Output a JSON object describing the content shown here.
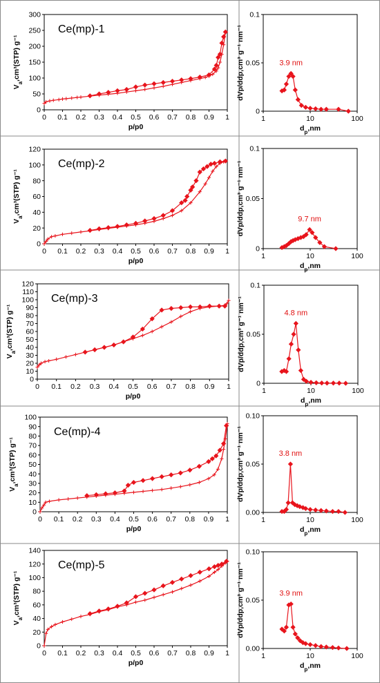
{
  "colors": {
    "series": "#e8141c",
    "frame": "#000000",
    "cellBorder": "#8a8a8a"
  },
  "chart_data": [
    {
      "type": "line",
      "panel": "isotherm",
      "sample_label": "Ce(mp)-1",
      "xlabel": "p/p0",
      "ylabel_main": "V",
      "ylabel_sub": "a",
      "ylabel_rest": ",cm³(STP) g⁻¹",
      "xlim": [
        0,
        1
      ],
      "ylim": [
        0,
        300
      ],
      "xticks": [
        0,
        0.1,
        0.2,
        0.3,
        0.4,
        0.5,
        0.6,
        0.7,
        0.8,
        0.9,
        1
      ],
      "yticks": [
        0,
        50,
        100,
        150,
        200,
        250,
        300
      ],
      "series": [
        {
          "marker": "plus",
          "x": [
            0,
            0.01,
            0.03,
            0.05,
            0.08,
            0.1,
            0.12,
            0.15,
            0.18,
            0.2,
            0.25,
            0.3,
            0.35,
            0.4,
            0.45,
            0.5,
            0.55,
            0.6,
            0.65,
            0.7,
            0.75,
            0.8,
            0.85,
            0.88,
            0.9,
            0.92,
            0.94,
            0.95,
            0.96,
            0.97,
            0.98,
            0.99
          ],
          "y": [
            20,
            25,
            28,
            30,
            32,
            34,
            35,
            37,
            39,
            40,
            43,
            46,
            49,
            52,
            56,
            60,
            64,
            69,
            74,
            80,
            86,
            92,
            98,
            102,
            106,
            112,
            122,
            132,
            150,
            175,
            205,
            245
          ]
        },
        {
          "marker": "diamond",
          "x": [
            0.99,
            0.98,
            0.97,
            0.96,
            0.95,
            0.94,
            0.93,
            0.9,
            0.85,
            0.8,
            0.75,
            0.7,
            0.65,
            0.6,
            0.55,
            0.5,
            0.45,
            0.4,
            0.35,
            0.3,
            0.25
          ],
          "y": [
            245,
            230,
            210,
            175,
            165,
            140,
            128,
            110,
            103,
            98,
            94,
            90,
            86,
            82,
            78,
            72,
            64,
            60,
            55,
            50,
            44
          ]
        }
      ]
    },
    {
      "type": "line",
      "panel": "pore_size_distribution",
      "xscale": "log",
      "xlabel_main": "d",
      "xlabel_sub": "p",
      "xlabel_rest": ",nm",
      "ylabel": "dVp/ddp,cm³ g⁻¹ nm⁻¹",
      "xlim": [
        1,
        100
      ],
      "ylim": [
        0,
        0.1
      ],
      "xticks": [
        1,
        10,
        100
      ],
      "yticks": [
        0,
        0.05,
        0.1
      ],
      "ytick_labels": [
        "0",
        "0.05",
        "0.1"
      ],
      "peak_label": "3.9 nm",
      "series": [
        {
          "marker": "diamond",
          "x": [
            2.5,
            2.8,
            3.1,
            3.5,
            3.9,
            4.3,
            4.8,
            5.5,
            6.5,
            8,
            10,
            13,
            17,
            22,
            40,
            65
          ],
          "y": [
            0.021,
            0.022,
            0.028,
            0.036,
            0.039,
            0.036,
            0.022,
            0.012,
            0.006,
            0.004,
            0.003,
            0.0025,
            0.002,
            0.002,
            0.002,
            0.0
          ]
        }
      ]
    },
    {
      "type": "line",
      "panel": "isotherm",
      "sample_label": "Ce(mp)-2",
      "xlabel": "p/p0",
      "ylabel_main": "V",
      "ylabel_sub": "a",
      "ylabel_rest": ",cm³(STP) g⁻¹",
      "xlim": [
        0,
        1
      ],
      "ylim": [
        0,
        120
      ],
      "xticks": [
        0,
        0.1,
        0.2,
        0.3,
        0.4,
        0.5,
        0.6,
        0.7,
        0.8,
        0.9,
        1
      ],
      "yticks": [
        0,
        20,
        40,
        60,
        80,
        100,
        120
      ],
      "series": [
        {
          "marker": "plus",
          "x": [
            0,
            0.01,
            0.02,
            0.04,
            0.06,
            0.1,
            0.15,
            0.2,
            0.25,
            0.3,
            0.35,
            0.4,
            0.45,
            0.5,
            0.55,
            0.6,
            0.65,
            0.7,
            0.75,
            0.8,
            0.85,
            0.88,
            0.9,
            0.92,
            0.94,
            0.96,
            0.98,
            0.99
          ],
          "y": [
            0,
            3,
            6,
            9,
            10,
            12,
            13.5,
            15,
            16.5,
            18,
            19.5,
            21,
            22.5,
            24,
            26,
            28.5,
            32,
            36,
            42,
            52,
            66,
            76,
            84,
            92,
            98,
            102,
            104,
            105
          ]
        },
        {
          "marker": "diamond",
          "x": [
            0.99,
            0.96,
            0.93,
            0.91,
            0.89,
            0.87,
            0.85,
            0.83,
            0.81,
            0.8,
            0.78,
            0.77,
            0.75,
            0.7,
            0.65,
            0.6,
            0.55,
            0.5,
            0.45,
            0.4,
            0.35,
            0.3,
            0.25
          ],
          "y": [
            105,
            104,
            102,
            101,
            98,
            95,
            91,
            80,
            72,
            68,
            60,
            55,
            52,
            42,
            36,
            32,
            29,
            26,
            24,
            22,
            20.5,
            19,
            17
          ]
        }
      ]
    },
    {
      "type": "line",
      "panel": "pore_size_distribution",
      "xscale": "log",
      "xlabel_main": "d",
      "xlabel_sub": "p",
      "xlabel_rest": ",nm",
      "ylabel": "dVp/ddp,cm³ g⁻¹ nm⁻¹",
      "xlim": [
        1,
        100
      ],
      "ylim": [
        0,
        0.1
      ],
      "xticks": [
        1,
        10,
        100
      ],
      "yticks": [
        0,
        0.05,
        0.1
      ],
      "ytick_labels": [
        "0",
        "0.05",
        "0.1"
      ],
      "peak_label": "9.7 nm",
      "series": [
        {
          "marker": "diamond",
          "x": [
            2.5,
            2.8,
            3.1,
            3.5,
            3.9,
            4.3,
            4.8,
            5.5,
            6.3,
            7.2,
            8.2,
            9.7,
            11,
            13,
            16,
            20,
            35
          ],
          "y": [
            0.001,
            0.002,
            0.003,
            0.005,
            0.007,
            0.008,
            0.009,
            0.01,
            0.011,
            0.012,
            0.014,
            0.019,
            0.016,
            0.011,
            0.006,
            0.002,
            0.0
          ]
        }
      ]
    },
    {
      "type": "line",
      "panel": "isotherm",
      "sample_label": "Ce(mp)-3",
      "xlabel": "p/p0",
      "ylabel_main": "V",
      "ylabel_sub": "a",
      "ylabel_rest": ",cm³(STP) g⁻¹",
      "xlim": [
        0,
        1
      ],
      "ylim": [
        0,
        120
      ],
      "xticks": [
        0,
        0.1,
        0.2,
        0.3,
        0.4,
        0.5,
        0.6,
        0.7,
        0.8,
        0.9,
        1
      ],
      "yticks": [
        0,
        10,
        20,
        30,
        40,
        50,
        60,
        70,
        80,
        90,
        100,
        110,
        120
      ],
      "series": [
        {
          "marker": "plus",
          "x": [
            0,
            0.01,
            0.02,
            0.04,
            0.06,
            0.1,
            0.15,
            0.2,
            0.25,
            0.3,
            0.35,
            0.4,
            0.45,
            0.5,
            0.55,
            0.6,
            0.65,
            0.7,
            0.75,
            0.8,
            0.85,
            0.9,
            0.95,
            0.98,
            0.99,
            1.0
          ],
          "y": [
            15,
            18,
            20,
            22,
            23,
            25,
            28,
            31,
            34,
            37,
            40,
            43,
            47,
            51,
            55,
            60,
            66,
            72,
            79,
            85,
            89,
            91,
            92,
            93,
            95,
            99
          ]
        },
        {
          "marker": "diamond",
          "x": [
            0.98,
            0.95,
            0.9,
            0.85,
            0.8,
            0.75,
            0.7,
            0.65,
            0.6,
            0.55,
            0.5,
            0.45,
            0.4,
            0.35,
            0.3,
            0.25
          ],
          "y": [
            92,
            92,
            92,
            91,
            91,
            90,
            89,
            87,
            76,
            63,
            53,
            47,
            43,
            40,
            37,
            34
          ]
        }
      ]
    },
    {
      "type": "line",
      "panel": "pore_size_distribution",
      "xscale": "log",
      "xlabel_main": "d",
      "xlabel_sub": "p",
      "xlabel_rest": ",nm",
      "ylabel": "dVp/ddp,cm³ g⁻¹ nm⁻¹",
      "xlim": [
        1,
        100
      ],
      "ylim": [
        0,
        0.1
      ],
      "xticks": [
        1,
        10,
        100
      ],
      "yticks": [
        0,
        0.05,
        0.1
      ],
      "ytick_labels": [
        "0",
        "0.05",
        "0.1"
      ],
      "peak_label": "4.8 nm",
      "series": [
        {
          "marker": "diamond",
          "x": [
            2.4,
            2.7,
            3.0,
            3.4,
            3.8,
            4.3,
            4.8,
            5.4,
            6.1,
            7,
            8,
            10,
            13,
            17,
            22,
            30,
            40,
            55
          ],
          "y": [
            0.012,
            0.013,
            0.012,
            0.025,
            0.04,
            0.05,
            0.061,
            0.034,
            0.013,
            0.004,
            0.002,
            0.001,
            0.0005,
            0.0003,
            0.0002,
            0.0002,
            0.0002,
            0.0
          ]
        }
      ]
    },
    {
      "type": "line",
      "panel": "isotherm",
      "sample_label": "Ce(mp)-4",
      "xlabel": "p/p0",
      "ylabel_main": "V",
      "ylabel_sub": "a",
      "ylabel_rest": ",cm³(STP) g⁻¹",
      "xlim": [
        0,
        1
      ],
      "ylim": [
        0,
        100
      ],
      "xticks": [
        0,
        0.1,
        0.2,
        0.3,
        0.4,
        0.5,
        0.6,
        0.7,
        0.8,
        0.9,
        1
      ],
      "yticks": [
        0,
        10,
        20,
        30,
        40,
        50,
        60,
        70,
        80,
        90,
        100
      ],
      "series": [
        {
          "marker": "plus",
          "x": [
            0,
            0.01,
            0.02,
            0.03,
            0.05,
            0.1,
            0.15,
            0.2,
            0.25,
            0.3,
            0.35,
            0.4,
            0.45,
            0.5,
            0.55,
            0.6,
            0.65,
            0.7,
            0.75,
            0.8,
            0.85,
            0.9,
            0.93,
            0.95,
            0.97,
            0.98,
            0.99,
            1.0
          ],
          "y": [
            0,
            4,
            7,
            10,
            11,
            12.5,
            13.5,
            14.5,
            15.5,
            16.5,
            17.5,
            18.5,
            19.5,
            20.5,
            21.5,
            22.5,
            23.5,
            25,
            26.5,
            28.5,
            31,
            35,
            39,
            45,
            56,
            66,
            77,
            93
          ]
        },
        {
          "marker": "diamond",
          "x": [
            0.995,
            0.98,
            0.96,
            0.94,
            0.92,
            0.9,
            0.85,
            0.8,
            0.75,
            0.7,
            0.65,
            0.6,
            0.55,
            0.5,
            0.47,
            0.45,
            0.4,
            0.35,
            0.3,
            0.25
          ],
          "y": [
            91,
            72,
            65,
            59,
            56,
            53,
            48,
            44,
            41,
            39,
            37,
            35,
            33,
            31,
            28,
            22,
            20,
            19,
            18,
            17
          ]
        }
      ]
    },
    {
      "type": "line",
      "panel": "pore_size_distribution",
      "xscale": "log",
      "xlabel_main": "d",
      "xlabel_sub": "p",
      "xlabel_rest": ",nm",
      "ylabel": "dVp/ddp,cm³ g⁻¹ nm⁻¹",
      "xlim": [
        1,
        100
      ],
      "ylim": [
        0,
        0.1
      ],
      "xticks": [
        1,
        10,
        100
      ],
      "yticks": [
        0,
        0.05,
        0.1
      ],
      "ytick_labels": [
        "0.00",
        "0.05",
        "0.10"
      ],
      "peak_label": "3.8 nm",
      "series": [
        {
          "marker": "diamond",
          "x": [
            2.5,
            2.8,
            3.1,
            3.4,
            3.8,
            4.2,
            4.7,
            5.3,
            6,
            7,
            8,
            10,
            13,
            17,
            22,
            30,
            40,
            55
          ],
          "y": [
            0.001,
            0.001,
            0.003,
            0.01,
            0.05,
            0.01,
            0.008,
            0.007,
            0.006,
            0.005,
            0.004,
            0.003,
            0.0025,
            0.002,
            0.0015,
            0.001,
            0.001,
            0.0
          ]
        }
      ]
    },
    {
      "type": "line",
      "panel": "isotherm",
      "sample_label": "Ce(mp)-5",
      "xlabel": "p/p0",
      "ylabel_main": "V",
      "ylabel_sub": "a",
      "ylabel_rest": ",cm³(STP) g⁻¹",
      "xlim": [
        0,
        1
      ],
      "ylim": [
        0,
        140
      ],
      "xticks": [
        0,
        0.1,
        0.2,
        0.3,
        0.4,
        0.5,
        0.6,
        0.7,
        0.8,
        0.9,
        1
      ],
      "yticks": [
        0,
        20,
        40,
        60,
        80,
        100,
        120,
        140
      ],
      "series": [
        {
          "marker": "plus",
          "x": [
            0,
            0.01,
            0.02,
            0.04,
            0.06,
            0.1,
            0.15,
            0.2,
            0.25,
            0.3,
            0.35,
            0.4,
            0.45,
            0.5,
            0.55,
            0.6,
            0.65,
            0.7,
            0.75,
            0.8,
            0.85,
            0.9,
            0.93,
            0.95,
            0.97,
            0.98,
            0.99,
            1.0
          ],
          "y": [
            0,
            18,
            24,
            28,
            31,
            35,
            39,
            43,
            46,
            50,
            53,
            57,
            60,
            64,
            67,
            71,
            75,
            79,
            84,
            89,
            95,
            102,
            108,
            112,
            117,
            120,
            122,
            124
          ]
        },
        {
          "marker": "diamond",
          "x": [
            0.995,
            0.97,
            0.95,
            0.93,
            0.9,
            0.85,
            0.8,
            0.75,
            0.7,
            0.65,
            0.6,
            0.55,
            0.5,
            0.45,
            0.4,
            0.35,
            0.3,
            0.25
          ],
          "y": [
            124,
            120,
            118,
            116,
            113,
            108,
            103,
            98,
            93,
            88,
            82,
            77,
            72,
            63,
            58,
            54,
            51,
            47
          ]
        }
      ]
    },
    {
      "type": "line",
      "panel": "pore_size_distribution",
      "xscale": "log",
      "xlabel_main": "d",
      "xlabel_sub": "p",
      "xlabel_rest": ",nm",
      "ylabel": "dVp/ddp,cm³ g⁻¹ nm⁻¹",
      "xlim": [
        1,
        100
      ],
      "ylim": [
        0,
        0.1
      ],
      "xticks": [
        1,
        10,
        100
      ],
      "yticks": [
        0,
        0.05,
        0.1
      ],
      "ytick_labels": [
        "0.00",
        "0.05",
        "0.10"
      ],
      "peak_label": "3.9 nm",
      "series": [
        {
          "marker": "diamond",
          "x": [
            2.5,
            2.8,
            3.1,
            3.5,
            3.9,
            4.3,
            4.8,
            5.4,
            6.1,
            7,
            8,
            10,
            13,
            17,
            22,
            30,
            40,
            60
          ],
          "y": [
            0.02,
            0.018,
            0.022,
            0.045,
            0.046,
            0.022,
            0.015,
            0.011,
            0.008,
            0.006,
            0.005,
            0.004,
            0.003,
            0.002,
            0.0015,
            0.001,
            0.0005,
            0.0
          ]
        }
      ]
    }
  ]
}
